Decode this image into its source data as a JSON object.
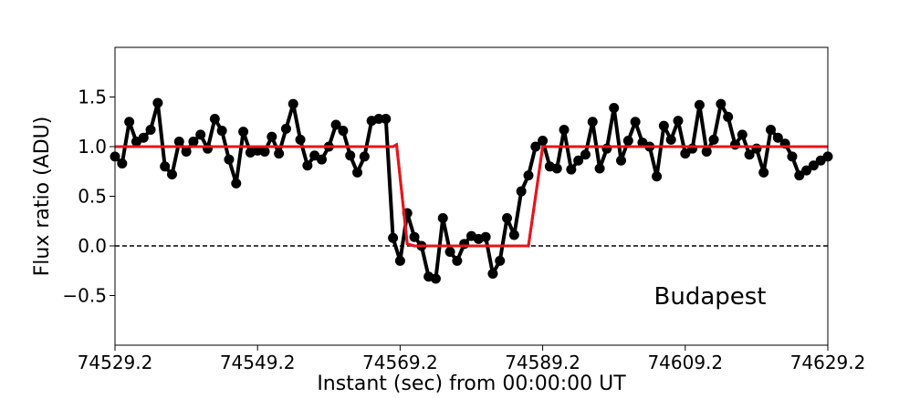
{
  "chart_data": {
    "type": "line",
    "title": "",
    "xlabel": "Instant (sec) from 00:00:00 UT",
    "ylabel": "Flux ratio (ADU)",
    "annotation": "Budapest",
    "xlim": [
      74529.2,
      74629.2
    ],
    "ylim": [
      -1.0,
      2.0
    ],
    "xticks": [
      74529.2,
      74549.2,
      74569.2,
      74589.2,
      74609.2,
      74629.2
    ],
    "xtick_labels": [
      "74529.2",
      "74549.2",
      "74569.2",
      "74589.2",
      "74609.2",
      "74629.2"
    ],
    "yticks": [
      -0.5,
      0.0,
      0.5,
      1.0,
      1.5
    ],
    "ytick_labels": [
      "−0.5",
      "0.0",
      "0.5",
      "1.0",
      "1.5"
    ],
    "grid": false,
    "reference_line": {
      "y": 0.0,
      "style": "dashed",
      "color": "#000000"
    },
    "series": [
      {
        "color": "#000000",
        "marker": "circle",
        "x": [
          74529.2,
          74530.2,
          74531.2,
          74532.2,
          74533.2,
          74534.2,
          74535.2,
          74536.2,
          74537.2,
          74538.2,
          74539.2,
          74540.2,
          74541.2,
          74542.2,
          74543.2,
          74544.2,
          74545.2,
          74546.2,
          74547.2,
          74548.2,
          74549.2,
          74550.2,
          74551.2,
          74552.2,
          74553.2,
          74554.2,
          74555.2,
          74556.2,
          74557.2,
          74558.2,
          74559.2,
          74560.2,
          74561.2,
          74562.2,
          74563.2,
          74564.2,
          74565.2,
          74566.2,
          74567.2,
          74568.2,
          74569.2,
          74570.2,
          74571.2,
          74572.2,
          74573.2,
          74574.2,
          74575.2,
          74576.2,
          74577.2,
          74578.2,
          74579.2,
          74580.2,
          74581.2,
          74582.2,
          74583.2,
          74584.2,
          74585.2,
          74586.2,
          74587.2,
          74588.2,
          74589.2,
          74590.2,
          74591.2,
          74592.2,
          74593.2,
          74594.2,
          74595.2,
          74596.2,
          74597.2,
          74598.2,
          74599.2,
          74600.2,
          74601.2,
          74602.2,
          74603.2,
          74604.2,
          74605.2,
          74606.2,
          74607.2,
          74608.2,
          74609.2,
          74610.2,
          74611.2,
          74612.2,
          74613.2,
          74614.2,
          74615.2,
          74616.2,
          74617.2,
          74618.2,
          74619.2,
          74620.2,
          74621.2,
          74622.2,
          74623.2,
          74624.2,
          74625.2,
          74626.2,
          74627.2,
          74628.2,
          74629.2
        ],
        "y": [
          0.9,
          0.83,
          1.25,
          1.05,
          1.09,
          1.17,
          1.44,
          0.8,
          0.72,
          1.05,
          0.95,
          1.05,
          1.12,
          0.98,
          1.28,
          1.16,
          0.87,
          0.63,
          1.15,
          0.94,
          0.96,
          0.95,
          1.1,
          0.93,
          1.18,
          1.43,
          1.07,
          0.81,
          0.91,
          0.87,
          1.0,
          1.22,
          1.16,
          0.91,
          0.74,
          0.9,
          1.26,
          1.28,
          1.28,
          0.08,
          -0.15,
          0.33,
          0.09,
          0.0,
          -0.31,
          -0.33,
          0.28,
          -0.06,
          -0.15,
          0.02,
          0.1,
          0.07,
          0.09,
          -0.28,
          -0.15,
          0.28,
          0.11,
          0.55,
          0.71,
          1.0,
          1.06,
          0.8,
          0.78,
          1.17,
          0.77,
          0.86,
          0.92,
          1.25,
          0.78,
          0.98,
          1.39,
          0.86,
          1.06,
          1.25,
          1.04,
          1.0,
          0.7,
          1.21,
          1.07,
          1.26,
          0.93,
          0.98,
          1.42,
          0.95,
          1.07,
          1.43,
          1.3,
          1.02,
          1.12,
          0.92,
          0.98,
          0.74,
          1.17,
          1.09,
          1.03,
          0.9,
          0.71,
          0.76,
          0.81,
          0.86,
          0.9
        ]
      },
      {
        "color": "#e8141a",
        "marker": "none",
        "x": [
          74529.2,
          74568.2,
          74568.7,
          74570.2,
          74571.2,
          74580.2,
          74587.2,
          74588.2,
          74589.2,
          74629.2
        ],
        "y": [
          1.0,
          1.0,
          1.02,
          0.02,
          0.0,
          0.0,
          0.0,
          0.5,
          1.0,
          1.0
        ]
      }
    ]
  }
}
